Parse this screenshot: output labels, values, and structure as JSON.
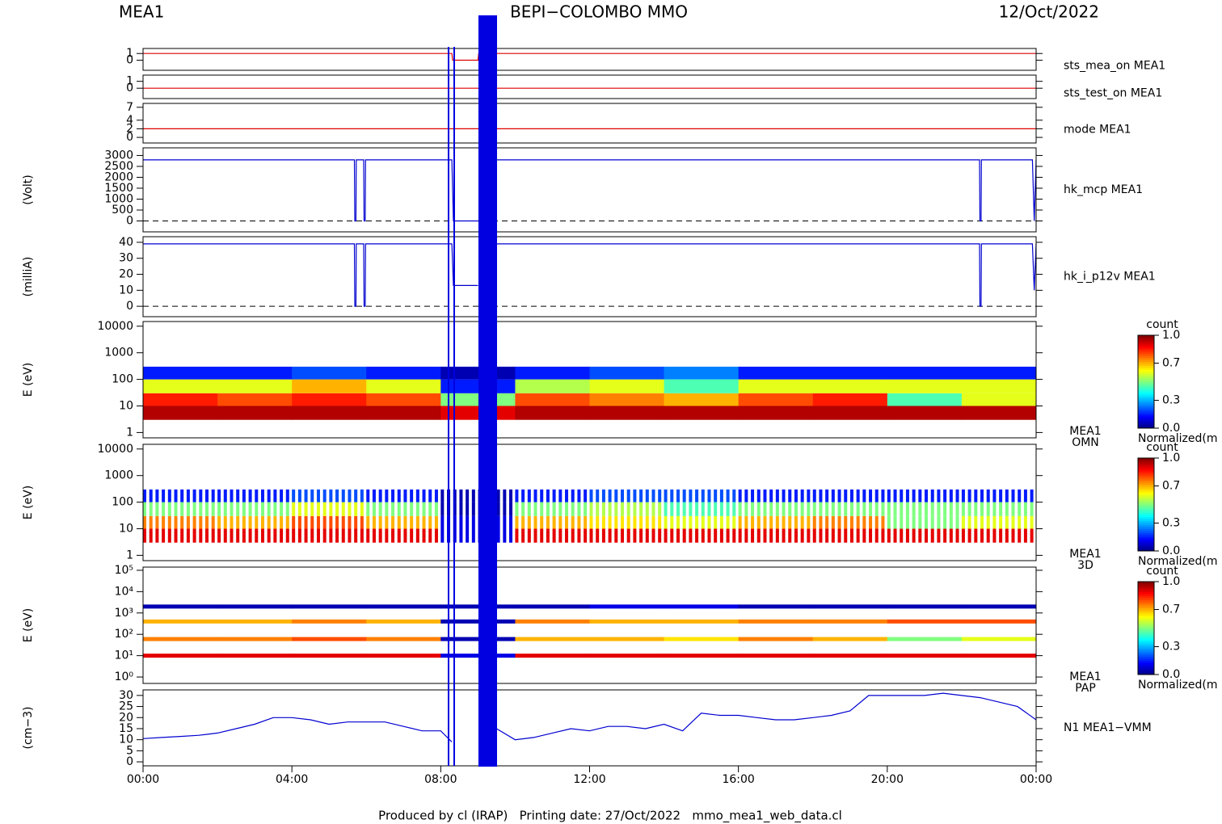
{
  "header": {
    "left": "MEA1",
    "title": "BEPI−COLOMBO MMO",
    "date": "12/Oct/2022"
  },
  "footer": "Produced by cl (IRAP)   Printing date: 27/Oct/2022   mmo_mea1_web_data.cl",
  "chart_data": [
    {
      "type": "line",
      "right_label": "sts_mea_on MEA1",
      "color": "#e00000",
      "xlim": [
        0,
        24
      ],
      "ylim": [
        -1.5,
        1.75
      ],
      "yticks": [
        0,
        1
      ],
      "x": [
        0,
        8.3,
        8.32,
        9.0,
        9.02,
        24
      ],
      "values": [
        1,
        1,
        0,
        0,
        1,
        1
      ]
    },
    {
      "type": "line",
      "right_label": "sts_test_on MEA1",
      "color": "#e00000",
      "xlim": [
        0,
        24
      ],
      "ylim": [
        -1.5,
        1.9
      ],
      "yticks": [
        0,
        1
      ],
      "x": [
        0,
        24
      ],
      "values": [
        0,
        0
      ]
    },
    {
      "type": "line",
      "right_label": "mode MEA1",
      "color": "#e00000",
      "xlim": [
        0,
        24
      ],
      "ylim": [
        -1.3,
        7.9
      ],
      "yticks": [
        0,
        2,
        4,
        7
      ],
      "x": [
        0,
        24
      ],
      "values": [
        2,
        2
      ]
    },
    {
      "type": "line",
      "ylabel": "(Volt)",
      "right_label": "hk_mcp MEA1",
      "color": "#0000d0",
      "xlim": [
        0,
        24
      ],
      "ylim": [
        -500,
        3350
      ],
      "yticks": [
        0,
        500,
        1000,
        1500,
        2000,
        2500,
        3000
      ],
      "baseline": 0,
      "x": [
        0,
        5.68,
        5.69,
        5.72,
        5.73,
        5.93,
        5.94,
        5.97,
        5.98,
        8.3,
        8.34,
        9.0,
        9.2,
        9.5,
        22.48,
        22.49,
        22.52,
        22.53,
        23.9,
        23.95,
        24
      ],
      "values": [
        2800,
        2800,
        0,
        0,
        2800,
        2800,
        0,
        0,
        2800,
        2800,
        0,
        0,
        null,
        2800,
        2800,
        0,
        0,
        2800,
        2800,
        0,
        2800
      ]
    },
    {
      "type": "line",
      "ylabel": "(milliA)",
      "right_label": "hk_i_p12v MEA1",
      "color": "#0000d0",
      "xlim": [
        0,
        24
      ],
      "ylim": [
        -6.5,
        43.5
      ],
      "yticks": [
        0,
        10,
        20,
        30,
        40
      ],
      "baseline": 0,
      "x": [
        0,
        5.68,
        5.69,
        5.72,
        5.73,
        5.93,
        5.94,
        5.97,
        5.98,
        8.3,
        8.34,
        9.0,
        9.2,
        9.5,
        22.48,
        22.49,
        22.52,
        22.53,
        23.9,
        23.95,
        24
      ],
      "values": [
        39,
        39,
        0,
        0,
        39,
        39,
        0,
        0,
        39,
        39,
        13,
        13,
        null,
        39,
        39,
        0,
        0,
        39,
        39,
        10,
        39
      ]
    },
    {
      "type": "heatmap",
      "ylabel": "E (eV)",
      "right_label": [
        "MEA1",
        "OMN"
      ],
      "log": true,
      "xlim": [
        0,
        24
      ],
      "ylim": [
        0.63,
        15000
      ],
      "yticks": [
        1,
        10,
        100,
        1000,
        10000
      ],
      "x_bins": [
        0,
        2,
        4,
        6,
        8,
        10,
        12,
        14,
        16,
        18,
        20,
        22,
        24
      ],
      "y_bins": [
        3,
        10,
        30,
        100,
        300
      ],
      "values": [
        [
          0.95,
          0.95,
          0.95,
          0.95,
          0.9,
          0.95,
          0.95,
          0.95,
          0.95,
          0.95,
          0.95,
          0.95
        ],
        [
          0.85,
          0.8,
          0.85,
          0.8,
          0.5,
          0.8,
          0.75,
          0.7,
          0.8,
          0.85,
          0.45,
          0.6
        ],
        [
          0.6,
          0.6,
          0.7,
          0.6,
          0.15,
          0.55,
          0.6,
          0.45,
          0.6,
          0.6,
          0.6,
          0.6
        ],
        [
          0.15,
          0.15,
          0.2,
          0.15,
          0.05,
          0.15,
          0.2,
          0.25,
          0.15,
          0.15,
          0.15,
          0.15
        ]
      ],
      "colorbar": {
        "title": "count",
        "label": "Normalized(m",
        "clim": [
          0,
          1
        ],
        "ticks": [
          {
            "value": 0,
            "label": "0.0"
          },
          0.3,
          0.7,
          {
            "value": 1,
            "label": "1.0"
          }
        ]
      }
    },
    {
      "type": "heatmap",
      "ylabel": "E (eV)",
      "right_label": [
        "MEA1",
        "3D"
      ],
      "log": true,
      "striped": true,
      "xlim": [
        0,
        24
      ],
      "ylim": [
        0.63,
        15000
      ],
      "yticks": [
        1,
        10,
        100,
        1000,
        10000
      ],
      "x_bins": [
        0,
        2,
        4,
        6,
        8,
        10,
        12,
        14,
        16,
        18,
        20,
        22,
        24
      ],
      "y_bins": [
        3,
        10,
        30,
        100,
        300
      ],
      "values": [
        [
          0.9,
          0.9,
          0.9,
          0.9,
          0.1,
          0.9,
          0.9,
          0.9,
          0.9,
          0.9,
          0.9,
          0.9
        ],
        [
          0.75,
          0.7,
          0.8,
          0.7,
          0.1,
          0.7,
          0.65,
          0.6,
          0.7,
          0.75,
          0.5,
          0.6
        ],
        [
          0.5,
          0.5,
          0.6,
          0.5,
          0.05,
          0.5,
          0.55,
          0.45,
          0.5,
          0.5,
          0.5,
          0.5
        ],
        [
          0.15,
          0.15,
          0.2,
          0.15,
          0.05,
          0.15,
          0.2,
          0.2,
          0.15,
          0.15,
          0.15,
          0.15
        ]
      ],
      "colorbar": {
        "title": "count",
        "label": "Normalized(m",
        "clim": [
          0,
          1
        ],
        "ticks": [
          {
            "value": 0,
            "label": "0.0"
          },
          0.3,
          0.7,
          {
            "value": 1,
            "label": "1.0"
          }
        ]
      }
    },
    {
      "type": "bands",
      "ylabel": "E (eV)",
      "right_label": [
        "MEA1",
        "PAP"
      ],
      "log": true,
      "xlim": [
        0,
        24
      ],
      "ylim": [
        0.5,
        141000
      ],
      "yticks": [
        {
          "value": 1,
          "label": "10⁰"
        },
        {
          "value": 10,
          "label": "10¹"
        },
        {
          "value": 100,
          "label": "10²"
        },
        {
          "value": 1000,
          "label": "10³"
        },
        {
          "value": 10000,
          "label": "10⁴"
        },
        {
          "value": 100000,
          "label": "10⁵"
        }
      ],
      "x_bins": [
        0,
        2,
        4,
        6,
        8,
        10,
        12,
        14,
        16,
        18,
        20,
        22,
        24
      ],
      "rows": [
        {
          "energy": 10,
          "values": [
            0.9,
            0.9,
            0.9,
            0.9,
            0.1,
            0.9,
            0.9,
            0.9,
            0.9,
            0.9,
            0.9,
            0.9
          ]
        },
        {
          "energy": 60,
          "values": [
            0.75,
            0.75,
            0.8,
            0.75,
            0.05,
            0.7,
            0.7,
            0.65,
            0.75,
            0.7,
            0.5,
            0.6
          ]
        },
        {
          "energy": 400,
          "values": [
            0.7,
            0.7,
            0.75,
            0.7,
            0.05,
            0.75,
            0.7,
            0.7,
            0.75,
            0.75,
            0.8,
            0.8
          ]
        },
        {
          "energy": 2000,
          "values": [
            0.05,
            0.05,
            0.05,
            0.05,
            0.05,
            0.05,
            0.1,
            0.1,
            0.05,
            0.05,
            0.05,
            0.05
          ]
        }
      ],
      "colorbar": {
        "title": "count",
        "label": "Normalized(m",
        "clim": [
          0,
          1
        ],
        "ticks": [
          {
            "value": 0,
            "label": "0.0"
          },
          0.3,
          0.7,
          {
            "value": 1,
            "label": "1.0"
          }
        ]
      }
    },
    {
      "type": "line",
      "ylabel": "(cm−3)",
      "right_label": "N1 MEA1−VMM",
      "color": "#0000d0",
      "xlim": [
        0,
        24
      ],
      "ylim": [
        -1.8,
        32.5
      ],
      "yticks": [
        0,
        5,
        10,
        15,
        20,
        25,
        30
      ],
      "xticks": [
        {
          "value": 0,
          "label": "00:00"
        },
        {
          "value": 4,
          "label": "04:00"
        },
        {
          "value": 8,
          "label": "08:00"
        },
        {
          "value": 12,
          "label": "12:00"
        },
        {
          "value": 16,
          "label": "16:00"
        },
        {
          "value": 20,
          "label": "20:00"
        },
        {
          "value": 24,
          "label": "00:00"
        }
      ],
      "x": [
        0,
        0.5,
        1,
        1.5,
        2,
        2.5,
        3,
        3.5,
        4,
        4.5,
        5,
        5.5,
        6,
        6.5,
        7,
        7.5,
        8,
        8.3,
        8.9,
        9.5,
        10,
        10.5,
        11,
        11.5,
        12,
        12.5,
        13,
        13.5,
        14,
        14.5,
        15,
        15.5,
        16,
        16.5,
        17,
        17.5,
        18,
        18.5,
        19,
        19.5,
        20,
        20.5,
        21,
        21.5,
        22,
        22.5,
        23,
        23.5,
        24
      ],
      "values": [
        10.5,
        11,
        11.5,
        12,
        13,
        15,
        17,
        20,
        20,
        19,
        17,
        18,
        18,
        18,
        16,
        14,
        14,
        9,
        null,
        15,
        10,
        11,
        13,
        15,
        14,
        16,
        16,
        15,
        17,
        14,
        22,
        21,
        21,
        20,
        19,
        19,
        20,
        21,
        23,
        30,
        30,
        30,
        30,
        31,
        30,
        29,
        27,
        25,
        19
      ]
    }
  ]
}
